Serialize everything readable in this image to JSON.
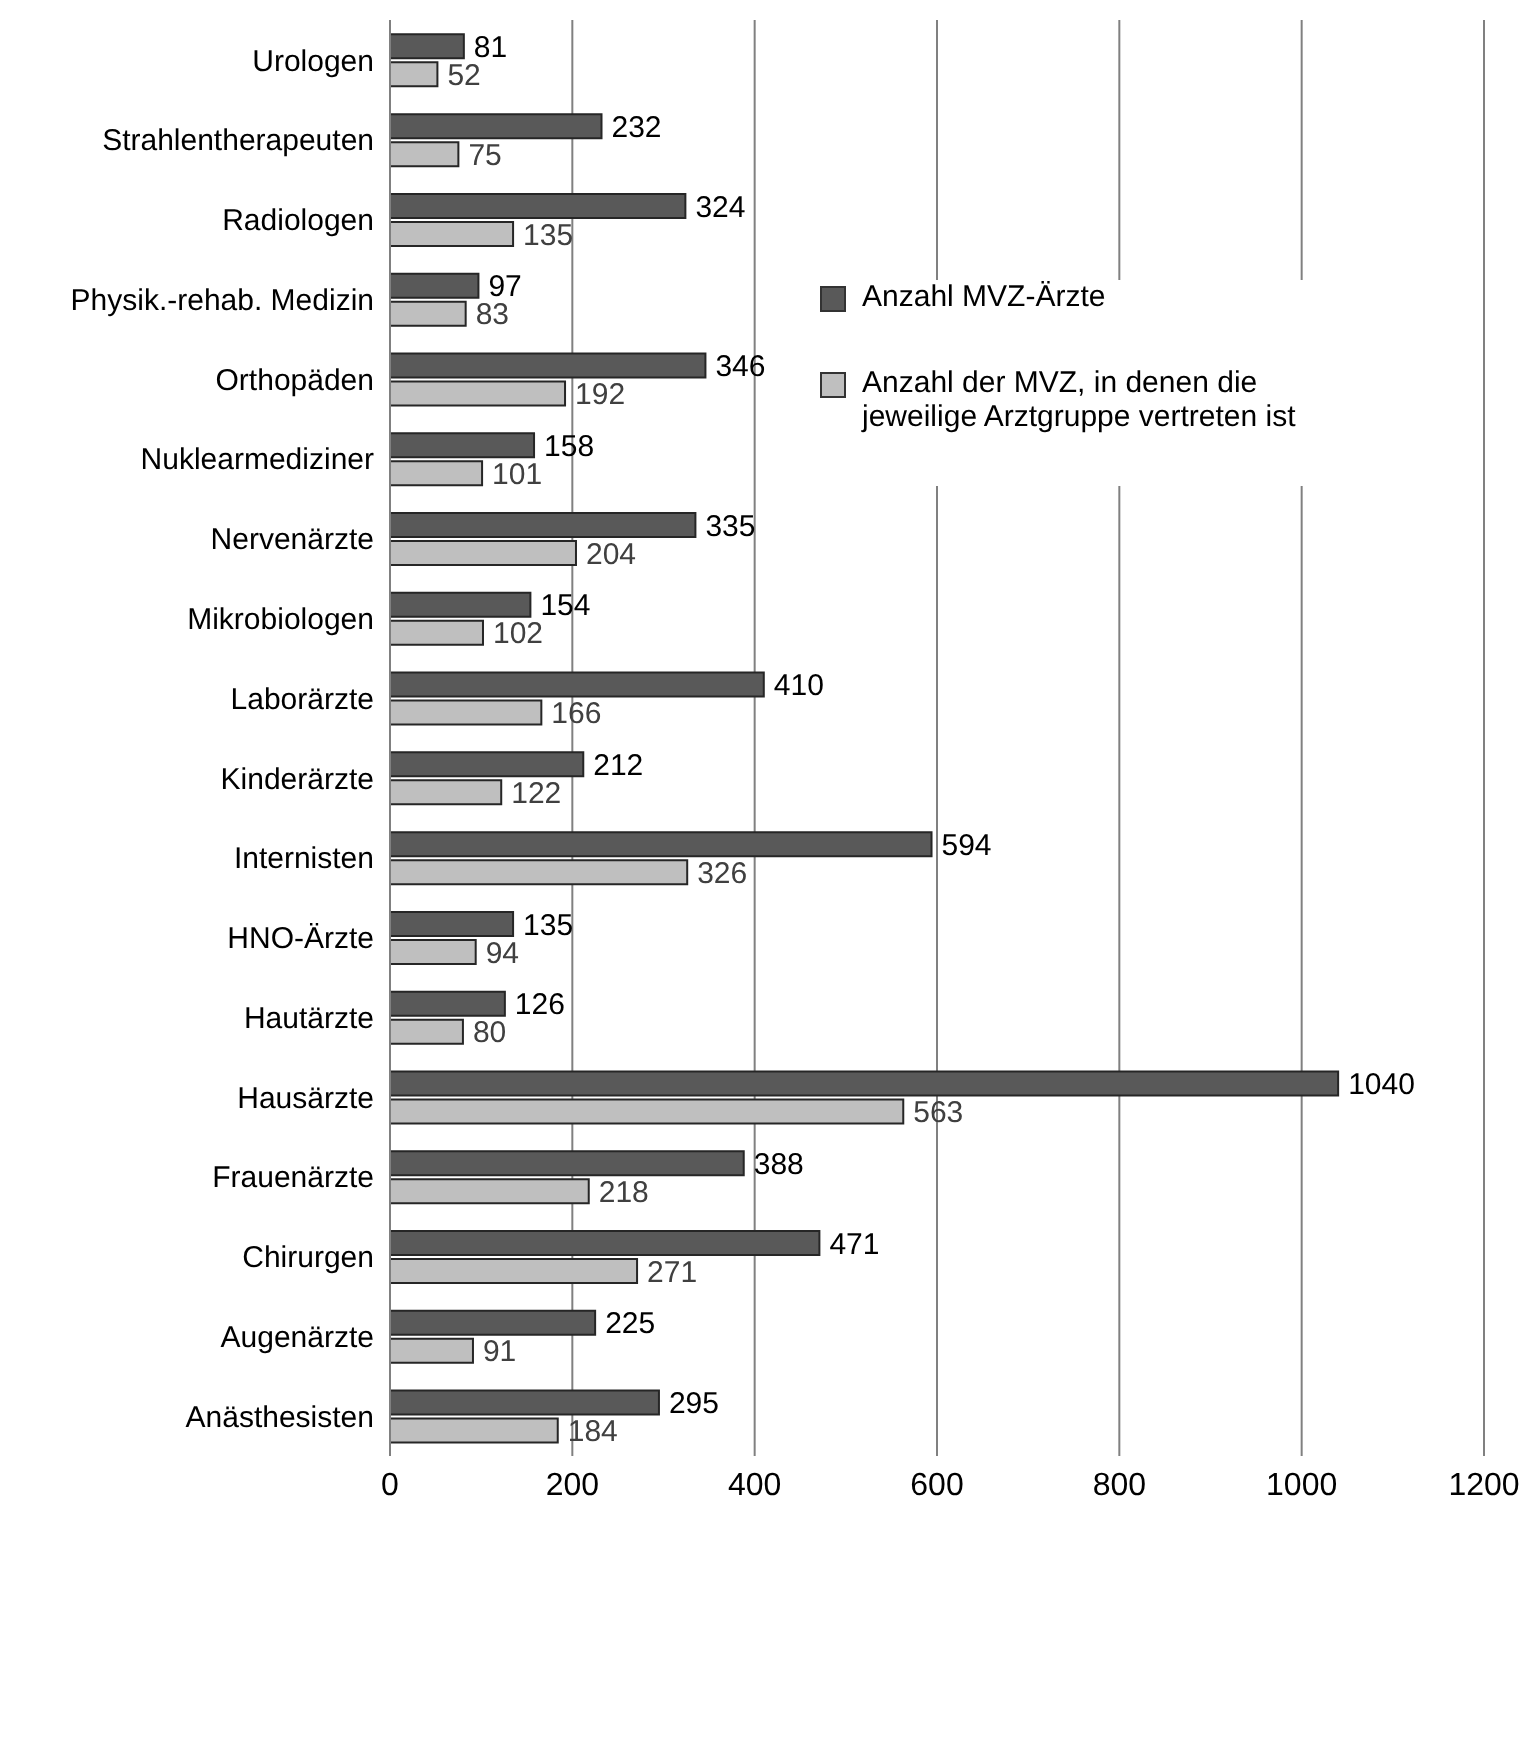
{
  "chart_data": {
    "type": "bar",
    "orientation": "horizontal",
    "categories": [
      "Urologen",
      "Strahlentherapeuten",
      "Radiologen",
      "Physik.-rehab. Medizin",
      "Orthopäden",
      "Nuklearmediziner",
      "Nervenärzte",
      "Mikrobiologen",
      "Laborärzte",
      "Kinderärzte",
      "Internisten",
      "HNO-Ärzte",
      "Hautärzte",
      "Hausärzte",
      "Frauenärzte",
      "Chirurgen",
      "Augenärzte",
      "Anästhesisten"
    ],
    "series": [
      {
        "name": "Anzahl MVZ-Ärzte",
        "color": "#595959",
        "values": [
          81,
          232,
          324,
          97,
          346,
          158,
          335,
          154,
          410,
          212,
          594,
          135,
          126,
          1040,
          388,
          471,
          225,
          295
        ]
      },
      {
        "name": "Anzahl der MVZ, in denen die jeweilige Arztgruppe vertreten ist",
        "color": "#bfbfbf",
        "values": [
          52,
          75,
          135,
          83,
          192,
          101,
          204,
          102,
          166,
          122,
          326,
          94,
          80,
          563,
          218,
          271,
          91,
          184
        ]
      }
    ],
    "xlim": [
      0,
      1200
    ],
    "xticks": [
      0,
      200,
      400,
      600,
      800,
      1000,
      1200
    ],
    "grid": "x",
    "legend": "top right",
    "data_labels": true
  }
}
